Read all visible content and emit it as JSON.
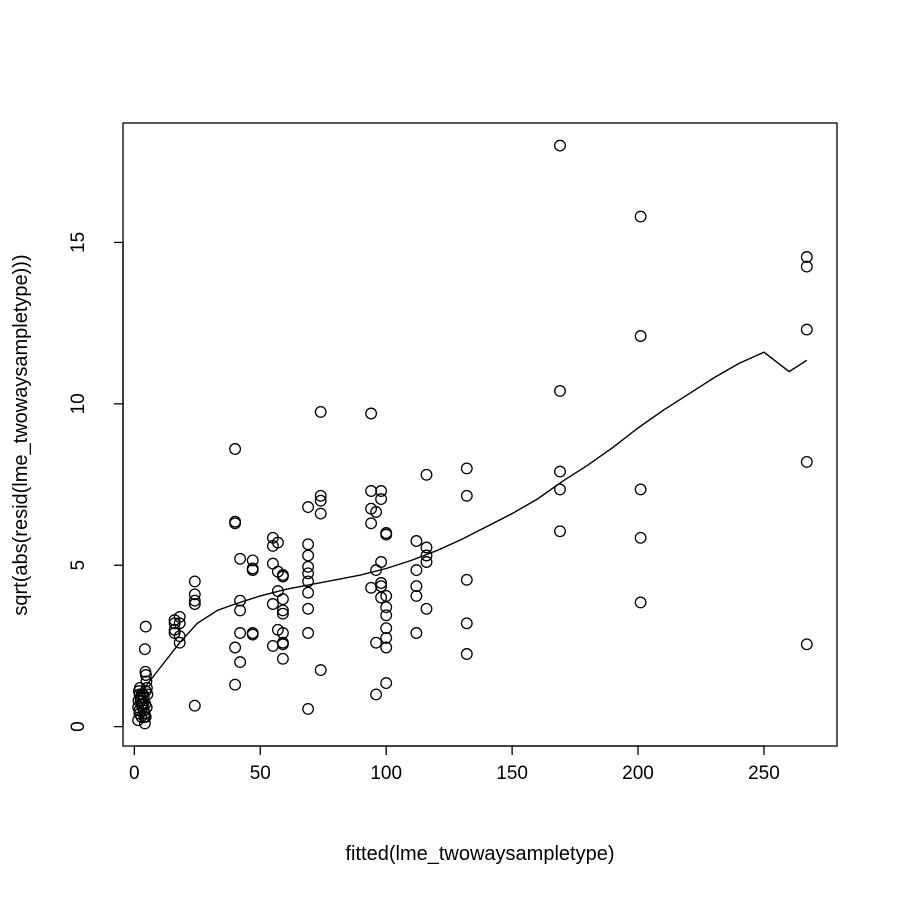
{
  "chart_data": {
    "type": "scatter",
    "title": "",
    "xlabel": "fitted(lme_twowaysampletype)",
    "ylabel": "sqrt(abs(resid(lme_twowaysampletype)))",
    "xlim": [
      -4.5,
      279
    ],
    "ylim": [
      -0.6,
      18.7
    ],
    "x_ticks": [
      0,
      50,
      100,
      150,
      200,
      250
    ],
    "y_ticks": [
      0,
      5,
      10,
      15
    ],
    "grid": false,
    "legend": "none",
    "points": [
      [
        1.5,
        0.2
      ],
      [
        2,
        0.4
      ],
      [
        3,
        0.7
      ],
      [
        2.5,
        0.9
      ],
      [
        3.5,
        1.0
      ],
      [
        1.8,
        1.1
      ],
      [
        2.2,
        1.2
      ],
      [
        3.8,
        0.5
      ],
      [
        4,
        0.3
      ],
      [
        4.2,
        0.1
      ],
      [
        1.5,
        0.6
      ],
      [
        2.5,
        0.8
      ],
      [
        3,
        1.0
      ],
      [
        4.5,
        1.1
      ],
      [
        2,
        0.5
      ],
      [
        3.5,
        0.7
      ],
      [
        4.5,
        0.3
      ],
      [
        1.6,
        0.8
      ],
      [
        2.8,
        0.3
      ],
      [
        3.2,
        0.6
      ],
      [
        3.7,
        0.9
      ],
      [
        4.1,
        0.4
      ],
      [
        4.3,
        0.7
      ],
      [
        2.1,
        1.0
      ],
      [
        4.5,
        3.1
      ],
      [
        4.2,
        2.4
      ],
      [
        4.4,
        1.7
      ],
      [
        4.6,
        1.6
      ],
      [
        4.8,
        1.4
      ],
      [
        5,
        1.2
      ],
      [
        5.2,
        1.0
      ],
      [
        4.9,
        0.6
      ],
      [
        16,
        3.3
      ],
      [
        16,
        3.2
      ],
      [
        16,
        3.0
      ],
      [
        16,
        2.9
      ],
      [
        18,
        3.4
      ],
      [
        18,
        3.2
      ],
      [
        18,
        2.8
      ],
      [
        18,
        2.6
      ],
      [
        24,
        4.5
      ],
      [
        24,
        4.1
      ],
      [
        24,
        3.9
      ],
      [
        24,
        3.8
      ],
      [
        24,
        0.65
      ],
      [
        40,
        8.6
      ],
      [
        40,
        6.35
      ],
      [
        40,
        6.3
      ],
      [
        40,
        2.45
      ],
      [
        40,
        1.3
      ],
      [
        42,
        5.2
      ],
      [
        42,
        3.9
      ],
      [
        42,
        3.6
      ],
      [
        42,
        2.9
      ],
      [
        42,
        2.0
      ],
      [
        47,
        5.15
      ],
      [
        47,
        4.9
      ],
      [
        47,
        4.85
      ],
      [
        47,
        2.9
      ],
      [
        47,
        2.85
      ],
      [
        55,
        5.85
      ],
      [
        55,
        5.6
      ],
      [
        55,
        5.05
      ],
      [
        55,
        3.8
      ],
      [
        55,
        2.5
      ],
      [
        57,
        5.7
      ],
      [
        57,
        4.8
      ],
      [
        57,
        4.2
      ],
      [
        57,
        3.0
      ],
      [
        59,
        4.7
      ],
      [
        59,
        4.65
      ],
      [
        59,
        3.95
      ],
      [
        59,
        3.6
      ],
      [
        59,
        3.5
      ],
      [
        59,
        2.9
      ],
      [
        59,
        2.6
      ],
      [
        59,
        2.55
      ],
      [
        59,
        2.1
      ],
      [
        69,
        6.8
      ],
      [
        69,
        5.65
      ],
      [
        69,
        5.3
      ],
      [
        69,
        4.95
      ],
      [
        69,
        4.75
      ],
      [
        69,
        4.5
      ],
      [
        69,
        4.15
      ],
      [
        69,
        3.65
      ],
      [
        69,
        2.9
      ],
      [
        69,
        0.55
      ],
      [
        74,
        9.75
      ],
      [
        74,
        7.15
      ],
      [
        74,
        7.0
      ],
      [
        74,
        6.6
      ],
      [
        74,
        1.75
      ],
      [
        94,
        9.7
      ],
      [
        94,
        7.3
      ],
      [
        94,
        6.75
      ],
      [
        94,
        6.3
      ],
      [
        94,
        4.3
      ],
      [
        96,
        6.65
      ],
      [
        96,
        4.85
      ],
      [
        96,
        2.6
      ],
      [
        96,
        1.0
      ],
      [
        98,
        7.3
      ],
      [
        98,
        7.05
      ],
      [
        98,
        5.1
      ],
      [
        98,
        4.45
      ],
      [
        98,
        4.35
      ],
      [
        98,
        4.0
      ],
      [
        100,
        6.0
      ],
      [
        100,
        5.95
      ],
      [
        100,
        4.05
      ],
      [
        100,
        3.7
      ],
      [
        100,
        3.45
      ],
      [
        100,
        3.05
      ],
      [
        100,
        2.75
      ],
      [
        100,
        2.45
      ],
      [
        100,
        1.35
      ],
      [
        112,
        5.75
      ],
      [
        112,
        4.85
      ],
      [
        112,
        4.35
      ],
      [
        112,
        4.05
      ],
      [
        112,
        2.9
      ],
      [
        116,
        7.8
      ],
      [
        116,
        5.55
      ],
      [
        116,
        5.3
      ],
      [
        116,
        5.1
      ],
      [
        116,
        3.65
      ],
      [
        132,
        8.0
      ],
      [
        132,
        7.15
      ],
      [
        132,
        4.55
      ],
      [
        132,
        3.2
      ],
      [
        132,
        2.25
      ],
      [
        169,
        18.0
      ],
      [
        169,
        10.4
      ],
      [
        169,
        7.9
      ],
      [
        169,
        7.35
      ],
      [
        169,
        6.05
      ],
      [
        201,
        15.8
      ],
      [
        201,
        12.1
      ],
      [
        201,
        7.35
      ],
      [
        201,
        5.85
      ],
      [
        201,
        3.85
      ],
      [
        267,
        14.55
      ],
      [
        267,
        14.25
      ],
      [
        267,
        12.3
      ],
      [
        267,
        8.2
      ],
      [
        267,
        2.55
      ]
    ],
    "smooth_line": [
      [
        1.5,
        0.95
      ],
      [
        5,
        1.3
      ],
      [
        10,
        1.8
      ],
      [
        18,
        2.6
      ],
      [
        25,
        3.2
      ],
      [
        33,
        3.6
      ],
      [
        40,
        3.8
      ],
      [
        50,
        4.05
      ],
      [
        60,
        4.25
      ],
      [
        70,
        4.4
      ],
      [
        80,
        4.55
      ],
      [
        90,
        4.7
      ],
      [
        100,
        4.9
      ],
      [
        110,
        5.15
      ],
      [
        120,
        5.45
      ],
      [
        130,
        5.8
      ],
      [
        140,
        6.2
      ],
      [
        150,
        6.6
      ],
      [
        160,
        7.05
      ],
      [
        170,
        7.6
      ],
      [
        180,
        8.1
      ],
      [
        190,
        8.65
      ],
      [
        200,
        9.25
      ],
      [
        210,
        9.8
      ],
      [
        220,
        10.3
      ],
      [
        230,
        10.8
      ],
      [
        240,
        11.25
      ],
      [
        250,
        11.6
      ],
      [
        260,
        11.0
      ],
      [
        267,
        11.35
      ]
    ]
  }
}
